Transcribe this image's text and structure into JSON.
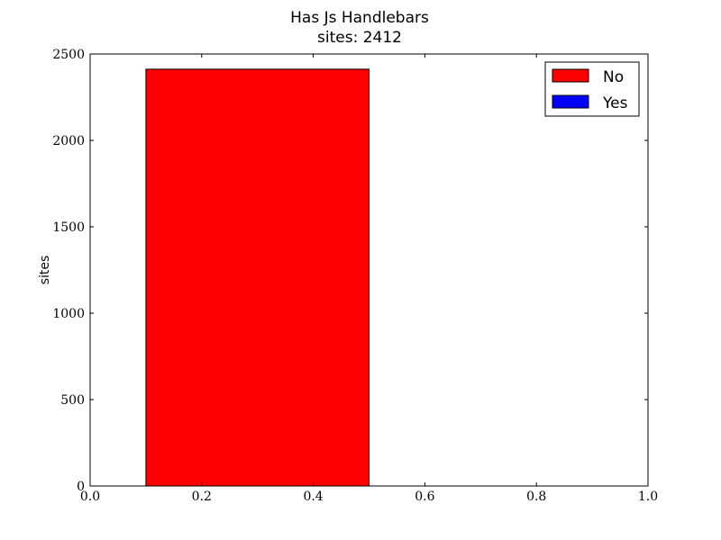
{
  "chart_data": {
    "type": "bar",
    "title": "Has Js Handlebars",
    "subtitle": "sites: 2412",
    "xlabel": "",
    "ylabel": "sites",
    "xlim": [
      0.0,
      1.0
    ],
    "ylim": [
      0,
      2500
    ],
    "xticks": [
      "0.0",
      "0.2",
      "0.4",
      "0.6",
      "0.8",
      "1.0"
    ],
    "yticks": [
      "0",
      "500",
      "1000",
      "1500",
      "2000",
      "2500"
    ],
    "grid": false,
    "legend_position": "top-right",
    "series": [
      {
        "name": "No",
        "color": "#ff0000",
        "bars": [
          {
            "x0": 0.1,
            "x1": 0.5,
            "value": 2412
          }
        ]
      },
      {
        "name": "Yes",
        "color": "#0000ff",
        "bars": []
      }
    ]
  }
}
